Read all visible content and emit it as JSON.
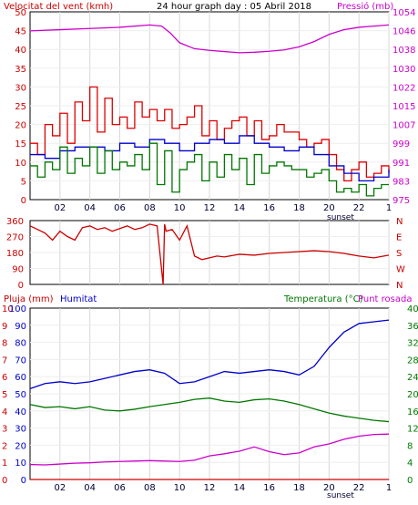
{
  "chart_data": [
    {
      "type": "line",
      "title": "24 hour graph day : 05 Abril 2018",
      "ylabel_left": "Velocitat del vent (kmh)",
      "ylabel_right": "Pressió (mb)",
      "x_ticks": [
        "02",
        "04",
        "06",
        "08",
        "10",
        "12",
        "14",
        "16",
        "18",
        "20",
        "22",
        "1"
      ],
      "x_annotation": "sunset",
      "left_axis": {
        "ticks": [
          "0",
          "5",
          "10",
          "15",
          "20",
          "25",
          "30",
          "35",
          "40",
          "45",
          "50"
        ],
        "range": [
          0,
          50
        ]
      },
      "right_axis": {
        "ticks": [
          "975",
          "983",
          "991",
          "999",
          "1007",
          "1015",
          "1022",
          "1030",
          "1038",
          "1046",
          "1054"
        ],
        "range": [
          975,
          1054
        ]
      },
      "grid": true,
      "series": [
        {
          "name": "Pressió",
          "axis": "right",
          "color": "#cc00cc",
          "x": [
            0,
            2,
            4,
            6,
            8,
            8.8,
            9.4,
            10,
            11,
            12,
            13,
            14,
            15,
            16,
            17,
            18,
            19,
            20,
            21,
            22,
            23,
            24
          ],
          "values": [
            1046,
            1046.5,
            1047,
            1047.5,
            1048.5,
            1048,
            1045,
            1041,
            1038.5,
            1037.8,
            1037.3,
            1036.8,
            1037,
            1037.4,
            1038,
            1039.3,
            1041.5,
            1044.5,
            1046.5,
            1047.5,
            1048,
            1048.5
          ]
        },
        {
          "color": "#dd0000",
          "axis": "left",
          "x": [
            0,
            0.5,
            1,
            1.5,
            2,
            2.5,
            3,
            3.5,
            4,
            4.5,
            5,
            5.5,
            6,
            6.5,
            7,
            7.5,
            8,
            8.5,
            9,
            9.5,
            10,
            10.5,
            11,
            11.5,
            12,
            12.5,
            13,
            13.5,
            14,
            14.5,
            15,
            15.5,
            16,
            16.5,
            17,
            17.5,
            18,
            18.5,
            19,
            19.5,
            20,
            20.5,
            21,
            21.5,
            22,
            22.5,
            23,
            23.5,
            24
          ],
          "values": [
            15,
            12,
            20,
            17,
            23,
            15,
            26,
            21,
            30,
            18,
            27,
            20,
            22,
            19,
            26,
            22,
            24,
            21,
            24,
            19,
            20,
            22,
            25,
            17,
            21,
            16,
            19,
            21,
            22,
            17,
            21,
            16,
            17,
            20,
            18,
            18,
            16,
            14,
            15,
            16,
            12,
            8,
            5,
            8,
            10,
            6,
            7,
            9,
            7
          ]
        },
        {
          "color": "#0000cc",
          "axis": "left",
          "x": [
            0,
            1,
            2,
            3,
            4,
            5,
            6,
            7,
            8,
            9,
            10,
            11,
            12,
            13,
            14,
            15,
            16,
            17,
            18,
            19,
            20,
            21,
            22,
            23,
            24
          ],
          "values": [
            12,
            11,
            13,
            14,
            14,
            13,
            15,
            14,
            16,
            15,
            13,
            15,
            16,
            15,
            17,
            15,
            14,
            13,
            14,
            12,
            9,
            7,
            5,
            6,
            8
          ]
        },
        {
          "color": "#007700",
          "axis": "left",
          "x": [
            0,
            0.5,
            1,
            1.5,
            2,
            2.5,
            3,
            3.5,
            4,
            4.5,
            5,
            5.5,
            6,
            6.5,
            7,
            7.5,
            8,
            8.5,
            9,
            9.5,
            10,
            10.5,
            11,
            11.5,
            12,
            12.5,
            13,
            13.5,
            14,
            14.5,
            15,
            15.5,
            16,
            16.5,
            17,
            17.5,
            18,
            18.5,
            19,
            19.5,
            20,
            20.5,
            21,
            21.5,
            22,
            22.5,
            23,
            23.5,
            24
          ],
          "values": [
            9,
            6,
            10,
            8,
            14,
            7,
            11,
            9,
            14,
            7,
            13,
            8,
            10,
            9,
            12,
            8,
            15,
            4,
            13,
            2,
            8,
            10,
            12,
            5,
            10,
            6,
            12,
            8,
            11,
            4,
            12,
            7,
            9,
            10,
            9,
            8,
            8,
            6,
            7,
            8,
            5,
            2,
            3,
            2,
            4,
            1,
            3,
            4,
            4
          ]
        }
      ]
    },
    {
      "type": "line",
      "title": "",
      "y_ticks": [
        "0",
        "90",
        "180",
        "270",
        "360"
      ],
      "range": [
        0,
        360
      ],
      "right_labels": [
        "N",
        "W",
        "S",
        "E",
        "N"
      ],
      "x_ticks": [
        "02",
        "04",
        "06",
        "08",
        "10",
        "12",
        "14",
        "16",
        "18",
        "20",
        "22",
        "1"
      ],
      "series": [
        {
          "color": "#cc0000",
          "x": [
            0,
            0.5,
            1,
            1.5,
            2,
            2.5,
            3,
            3.5,
            4,
            4.5,
            5,
            5.5,
            6,
            6.5,
            7,
            7.5,
            8,
            8.5,
            8.9,
            9,
            9.1,
            9.5,
            10,
            10.5,
            11,
            11.5,
            12,
            12.5,
            13,
            14,
            15,
            16,
            17,
            18,
            19,
            20,
            21,
            22,
            23,
            24
          ],
          "values": [
            330,
            310,
            290,
            250,
            300,
            270,
            250,
            320,
            330,
            310,
            320,
            300,
            315,
            330,
            310,
            320,
            340,
            330,
            0,
            340,
            300,
            310,
            250,
            330,
            160,
            140,
            150,
            160,
            155,
            170,
            165,
            175,
            180,
            185,
            190,
            185,
            175,
            160,
            150,
            165
          ]
        }
      ]
    },
    {
      "type": "line",
      "title": "",
      "ylabel_left_1": "Pluja (mm)",
      "ylabel_left_2": "Humitat",
      "ylabel_right": "Temperatura (°C)",
      "ylabel_right_2": "Punt rosada",
      "axis_pluja": {
        "ticks": [
          "0",
          "1",
          "2",
          "3",
          "4",
          "5",
          "6",
          "7",
          "8",
          "9",
          "10"
        ],
        "range": [
          0,
          10
        ]
      },
      "axis_humitat": {
        "ticks": [
          "0",
          "10",
          "20",
          "30",
          "40",
          "50",
          "60",
          "70",
          "80",
          "90",
          "100"
        ],
        "range": [
          0,
          100
        ]
      },
      "axis_temp": {
        "ticks": [
          "0",
          "4",
          "8",
          "12",
          "16",
          "20",
          "24",
          "28",
          "32",
          "36",
          "40"
        ],
        "range": [
          0,
          40
        ]
      },
      "x_ticks": [
        "02",
        "04",
        "06",
        "08",
        "10",
        "12",
        "14",
        "16",
        "18",
        "20",
        "22",
        "1"
      ],
      "x_annotation": "sunset",
      "series": [
        {
          "color": "#0000cc",
          "axis": "humitat",
          "x": [
            0,
            1,
            2,
            3,
            4,
            5,
            6,
            7,
            8,
            9,
            10,
            11,
            12,
            13,
            14,
            15,
            16,
            17,
            18,
            19,
            20,
            21,
            22,
            23,
            24
          ],
          "values": [
            53,
            56,
            57,
            56,
            57,
            59,
            61,
            63,
            64,
            62,
            56,
            57,
            60,
            63,
            62,
            63,
            64,
            63,
            61,
            66,
            77,
            86,
            91,
            92,
            93
          ]
        },
        {
          "color": "#007700",
          "axis": "temp",
          "x": [
            0,
            1,
            2,
            3,
            4,
            5,
            6,
            7,
            8,
            9,
            10,
            11,
            12,
            13,
            14,
            15,
            16,
            17,
            18,
            19,
            20,
            21,
            22,
            23,
            24
          ],
          "values": [
            17.5,
            16.8,
            17,
            16.5,
            17,
            16.2,
            16,
            16.4,
            17,
            17.5,
            18,
            18.7,
            19,
            18.3,
            18,
            18.6,
            18.8,
            18.3,
            17.5,
            16.5,
            15.5,
            14.8,
            14.3,
            13.8,
            13.5
          ]
        },
        {
          "color": "#cc00cc",
          "axis": "temp",
          "x": [
            0,
            1,
            2,
            3,
            4,
            5,
            6,
            7,
            8,
            9,
            10,
            11,
            12,
            13,
            14,
            15,
            16,
            17,
            18,
            19,
            20,
            21,
            22,
            23,
            24
          ],
          "values": [
            3.5,
            3.4,
            3.6,
            3.8,
            3.9,
            4.1,
            4.2,
            4.3,
            4.4,
            4.3,
            4.2,
            4.5,
            5.5,
            6,
            6.6,
            7.6,
            6.5,
            5.8,
            6.2,
            7.6,
            8.3,
            9.4,
            10.1,
            10.5,
            10.6
          ]
        },
        {
          "color": "#cc0000",
          "axis": "pluja",
          "x": [
            0,
            24
          ],
          "values": [
            0,
            0
          ]
        }
      ]
    }
  ]
}
